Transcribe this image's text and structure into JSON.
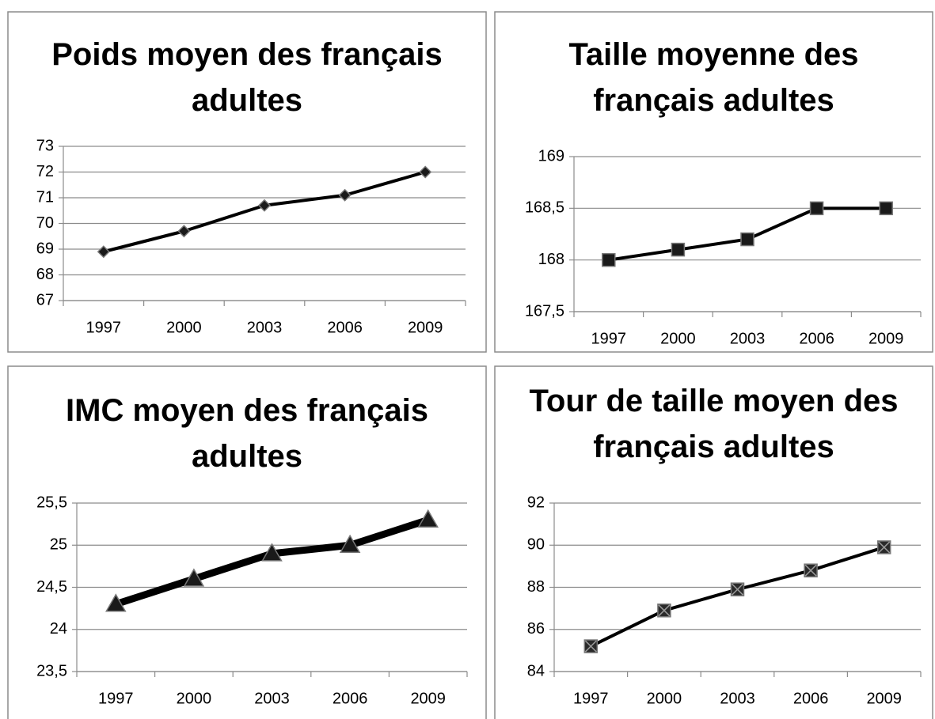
{
  "chart_data": [
    {
      "type": "line",
      "title": "Poids moyen des français adultes",
      "categories": [
        "1997",
        "2000",
        "2003",
        "2006",
        "2009"
      ],
      "values": [
        68.9,
        69.7,
        70.7,
        71.1,
        72.0
      ],
      "color": "#000000",
      "marker": "diamond",
      "ylim": [
        67,
        73
      ],
      "yticks": [
        67,
        68,
        69,
        70,
        71,
        72,
        73
      ],
      "grid": true
    },
    {
      "type": "line",
      "title": "Taille moyenne des français adultes",
      "categories": [
        "1997",
        "2000",
        "2003",
        "2006",
        "2009"
      ],
      "values": [
        168,
        168.1,
        168.2,
        168.5,
        168.5
      ],
      "color": "#000000",
      "marker": "square",
      "ylim": [
        167.5,
        169
      ],
      "yticks": [
        {
          "value": 167.5,
          "label": "167,5"
        },
        168,
        {
          "value": 168.5,
          "label": "168,5"
        },
        169
      ],
      "grid": true
    },
    {
      "type": "line",
      "title": "IMC moyen des français adultes",
      "categories": [
        "1997",
        "2000",
        "2003",
        "2006",
        "2009"
      ],
      "values": [
        24.3,
        24.6,
        24.9,
        25.0,
        25.3
      ],
      "color": "#000000",
      "marker": "triangle",
      "ylim": [
        23.5,
        25.5
      ],
      "yticks": [
        {
          "value": 23.5,
          "label": "23,5"
        },
        24,
        {
          "value": 24.5,
          "label": "24,5"
        },
        25,
        {
          "value": 25.5,
          "label": "25,5"
        }
      ],
      "grid": true
    },
    {
      "type": "line",
      "title": "Tour de taille moyen des français adultes",
      "categories": [
        "1997",
        "2000",
        "2003",
        "2006",
        "2009"
      ],
      "values": [
        85.2,
        86.9,
        87.9,
        88.8,
        89.9
      ],
      "color": "#000000",
      "marker": "xsquare",
      "ylim": [
        84,
        92
      ],
      "yticks": [
        84,
        86,
        88,
        90,
        92
      ],
      "grid": true
    }
  ]
}
